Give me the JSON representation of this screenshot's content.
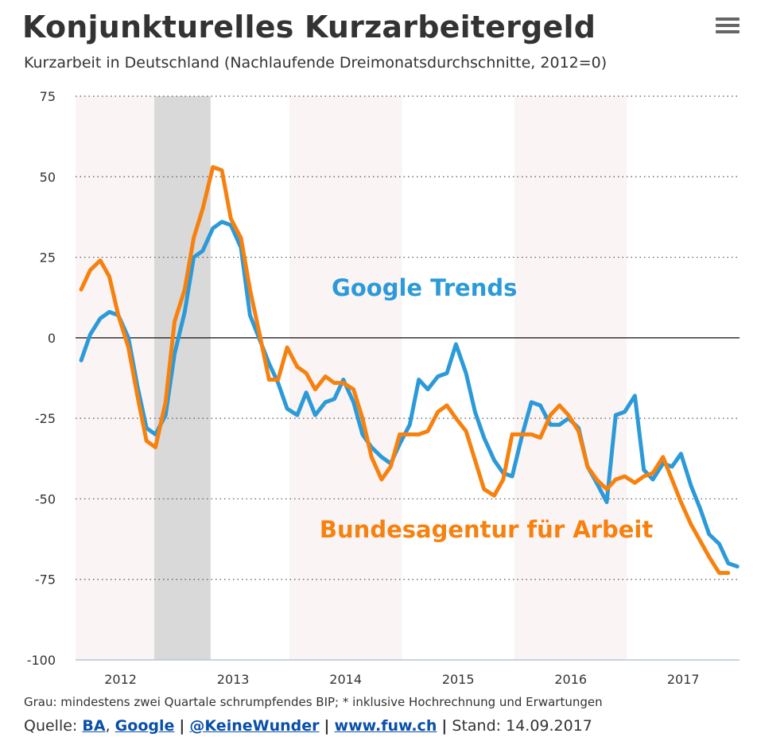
{
  "header": {
    "title": "Konjunkturelles Kurzarbeitergeld",
    "subtitle": "Kurzarbeit in Deutschland (Nachlaufende Dreimonatsdurchschnitte, 2012=0)",
    "menu_icon": "hamburger-menu-icon"
  },
  "footer": {
    "note": "Grau: mindestens zwei Quartale schrumpfendes BIP; * inklusive Hochrechnung und Erwartungen",
    "source_prefix": "Quelle:",
    "links": [
      "BA",
      "Google",
      "@KeineWunder",
      "www.fuw.ch"
    ],
    "stand": "Stand: 14.09.2017"
  },
  "colors": {
    "google": "#2c9ad8",
    "ba": "#f7810f",
    "recession": "#d9d9d9",
    "year_band": "#faf4f4"
  },
  "chart_data": {
    "type": "line",
    "title": "Konjunkturelles Kurzarbeitergeld",
    "subtitle": "Kurzarbeit in Deutschland (Nachlaufende Dreimonatsdurchschnitte, 2012=0)",
    "ylim": [
      -100,
      75
    ],
    "yticks": [
      75,
      50,
      25,
      0,
      -25,
      -50,
      -75,
      -100
    ],
    "xlim": [
      2011.6,
      2017.5
    ],
    "xticks": [
      2012,
      2013,
      2014,
      2015,
      2016,
      2017
    ],
    "grid": "horizontal-dotted",
    "recession_band": [
      2012.3,
      2012.8
    ],
    "year_bands": [
      [
        2011.6,
        2012.5
      ],
      [
        2013.5,
        2014.5
      ],
      [
        2015.5,
        2016.5
      ]
    ],
    "annotations": [
      {
        "text": "Google Trends",
        "series": "google",
        "x": 2014.7,
        "y": 13
      },
      {
        "text": "Bundesagentur für Arbeit",
        "series": "ba",
        "x": 2015.25,
        "y": -62
      }
    ],
    "series": [
      {
        "key": "google",
        "x": [
          2011.65,
          2011.73,
          2011.82,
          2011.9,
          2011.98,
          2012.07,
          2012.15,
          2012.23,
          2012.31,
          2012.4,
          2012.48,
          2012.57,
          2012.65,
          2012.73,
          2012.82,
          2012.9,
          2012.98,
          2013.07,
          2013.15,
          2013.23,
          2013.32,
          2013.4,
          2013.48,
          2013.57,
          2013.65,
          2013.73,
          2013.82,
          2013.9,
          2013.98,
          2014.07,
          2014.15,
          2014.23,
          2014.32,
          2014.4,
          2014.48,
          2014.57,
          2014.65,
          2014.73,
          2014.82,
          2014.9,
          2014.98,
          2015.07,
          2015.15,
          2015.23,
          2015.32,
          2015.4,
          2015.48,
          2015.57,
          2015.65,
          2015.73,
          2015.82,
          2015.9,
          2015.98,
          2016.07,
          2016.15,
          2016.23,
          2016.32,
          2016.4,
          2016.48,
          2016.57,
          2016.65,
          2016.73,
          2016.82,
          2016.9,
          2016.98,
          2017.07,
          2017.15,
          2017.23,
          2017.32,
          2017.4,
          2017.48
        ],
        "y": [
          -7,
          1,
          6,
          8,
          7,
          0,
          -15,
          -28,
          -30,
          -24,
          -5,
          8,
          25,
          27,
          34,
          36,
          35,
          28,
          7,
          0,
          -8,
          -14,
          -22,
          -24,
          -17,
          -24,
          -20,
          -19,
          -13,
          -20,
          -30,
          -34,
          -37,
          -39,
          -33,
          -27,
          -13,
          -16,
          -12,
          -11,
          -2,
          -11,
          -23,
          -31,
          -38,
          -42,
          -43,
          -30,
          -20,
          -21,
          -27,
          -27,
          -25,
          -28,
          -40,
          -45,
          -51,
          -24,
          -23,
          -18,
          -41,
          -44,
          -39,
          -40,
          -36,
          -46,
          -53,
          -61,
          -64,
          -70,
          -71
        ]
      },
      {
        "key": "ba",
        "x": [
          2011.65,
          2011.73,
          2011.82,
          2011.9,
          2011.98,
          2012.07,
          2012.15,
          2012.23,
          2012.31,
          2012.4,
          2012.48,
          2012.57,
          2012.65,
          2012.73,
          2012.82,
          2012.9,
          2012.98,
          2013.07,
          2013.15,
          2013.23,
          2013.32,
          2013.4,
          2013.48,
          2013.57,
          2013.65,
          2013.73,
          2013.82,
          2013.9,
          2013.98,
          2014.07,
          2014.15,
          2014.23,
          2014.32,
          2014.4,
          2014.48,
          2014.57,
          2014.65,
          2014.73,
          2014.82,
          2014.9,
          2014.98,
          2015.07,
          2015.15,
          2015.23,
          2015.32,
          2015.4,
          2015.48,
          2015.57,
          2015.65,
          2015.73,
          2015.82,
          2015.9,
          2015.98,
          2016.07,
          2016.15,
          2016.23,
          2016.32,
          2016.4,
          2016.48,
          2016.57,
          2016.65,
          2016.73,
          2016.82,
          2016.9,
          2016.98,
          2017.07,
          2017.15,
          2017.23,
          2017.32,
          2017.4
        ],
        "y": [
          15,
          21,
          24,
          19,
          7,
          -3,
          -18,
          -32,
          -34,
          -20,
          5,
          15,
          31,
          40,
          53,
          52,
          37,
          31,
          15,
          2,
          -13,
          -13,
          -3,
          -9,
          -11,
          -16,
          -12,
          -14,
          -14,
          -16,
          -25,
          -37,
          -44,
          -40,
          -30,
          -30,
          -30,
          -29,
          -23,
          -21,
          -25,
          -29,
          -38,
          -47,
          -49,
          -44,
          -30,
          -30,
          -30,
          -31,
          -24,
          -21,
          -24,
          -29,
          -40,
          -44,
          -47,
          -44,
          -43,
          -45,
          -43,
          -42,
          -37,
          -44,
          -51,
          -58,
          -63,
          -68,
          -73,
          -73
        ]
      }
    ]
  }
}
